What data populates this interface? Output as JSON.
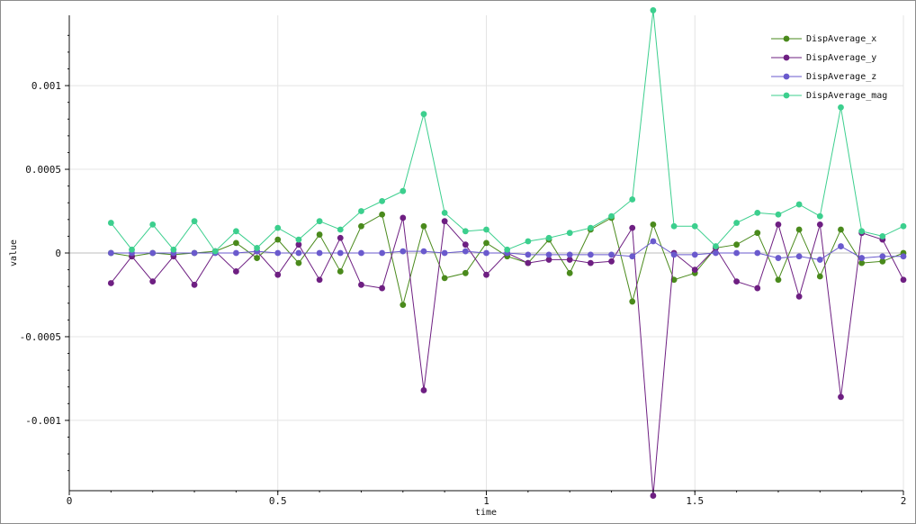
{
  "chart_data": {
    "type": "line",
    "xlabel": "time",
    "ylabel": "value",
    "xlim": [
      0,
      2
    ],
    "ylim": [
      -0.00142,
      0.00142
    ],
    "x_ticks": [
      0,
      0.5,
      1,
      1.5,
      2
    ],
    "x_tick_labels": [
      "0",
      "0.5",
      "1",
      "1.5",
      "2"
    ],
    "y_ticks": [
      0.001,
      0.0005,
      0,
      -0.0005,
      -0.001
    ],
    "y_tick_labels": [
      "0.001",
      "0.0005",
      "0",
      "-0.0005",
      "-0.001"
    ],
    "grid": true,
    "legend_position": "top-right",
    "x": [
      0.1,
      0.15,
      0.2,
      0.25,
      0.3,
      0.35,
      0.4,
      0.45,
      0.5,
      0.55,
      0.6,
      0.65,
      0.7,
      0.75,
      0.8,
      0.85,
      0.9,
      0.95,
      1.0,
      1.05,
      1.1,
      1.15,
      1.2,
      1.25,
      1.3,
      1.35,
      1.4,
      1.45,
      1.5,
      1.55,
      1.6,
      1.65,
      1.7,
      1.75,
      1.8,
      1.85,
      1.9,
      1.95,
      2.0
    ],
    "series": [
      {
        "name": "DispAverage_x",
        "color": "#4a8a1c",
        "values": [
          0,
          -2e-05,
          0,
          -1e-05,
          0,
          1e-05,
          6e-05,
          -3e-05,
          8e-05,
          -6e-05,
          0.00011,
          -0.00011,
          0.00016,
          0.00023,
          -0.00031,
          0.00016,
          -0.00015,
          -0.00012,
          6e-05,
          -2e-05,
          -6e-05,
          8e-05,
          -0.00012,
          0.00014,
          0.00021,
          -0.00029,
          0.00017,
          -0.00016,
          -0.00012,
          3e-05,
          5e-05,
          0.00012,
          -0.00016,
          0.00014,
          -0.00014,
          0.00014,
          -6e-05,
          -5e-05,
          0
        ]
      },
      {
        "name": "DispAverage_y",
        "color": "#6e1f82",
        "values": [
          -0.00018,
          -2e-05,
          -0.00017,
          -2e-05,
          -0.00019,
          1e-05,
          -0.00011,
          1e-05,
          -0.00013,
          5e-05,
          -0.00016,
          9e-05,
          -0.00019,
          -0.00021,
          0.00021,
          -0.00082,
          0.00019,
          5e-05,
          -0.00013,
          0,
          -6e-05,
          -4e-05,
          -4e-05,
          -6e-05,
          -5e-05,
          0.00015,
          -0.00145,
          0,
          -0.0001,
          3e-05,
          -0.00017,
          -0.00021,
          0.00017,
          -0.00026,
          0.00017,
          -0.00086,
          0.00012,
          8e-05,
          -0.00016
        ]
      },
      {
        "name": "DispAverage_z",
        "color": "#6a5acd",
        "values": [
          0,
          0,
          0,
          0,
          0,
          0,
          0,
          1e-05,
          0,
          0,
          0,
          0,
          0,
          0,
          1e-05,
          1e-05,
          0,
          1e-05,
          0,
          0,
          -1e-05,
          -1e-05,
          -1e-05,
          -1e-05,
          -1e-05,
          -2e-05,
          7e-05,
          -1e-05,
          -1e-05,
          0,
          0,
          0,
          -3e-05,
          -2e-05,
          -4e-05,
          4e-05,
          -3e-05,
          -2e-05,
          -2e-05
        ]
      },
      {
        "name": "DispAverage_mag",
        "color": "#3ccf8e",
        "values": [
          0.00018,
          2e-05,
          0.00017,
          2e-05,
          0.00019,
          1e-05,
          0.00013,
          3e-05,
          0.00015,
          8e-05,
          0.00019,
          0.00014,
          0.00025,
          0.00031,
          0.00037,
          0.00083,
          0.00024,
          0.00013,
          0.00014,
          2e-05,
          7e-05,
          9e-05,
          0.00012,
          0.00015,
          0.00022,
          0.00032,
          0.00145,
          0.00016,
          0.00016,
          4e-05,
          0.00018,
          0.00024,
          0.00023,
          0.00029,
          0.00022,
          0.00087,
          0.00013,
          0.0001,
          0.00016
        ]
      }
    ]
  }
}
